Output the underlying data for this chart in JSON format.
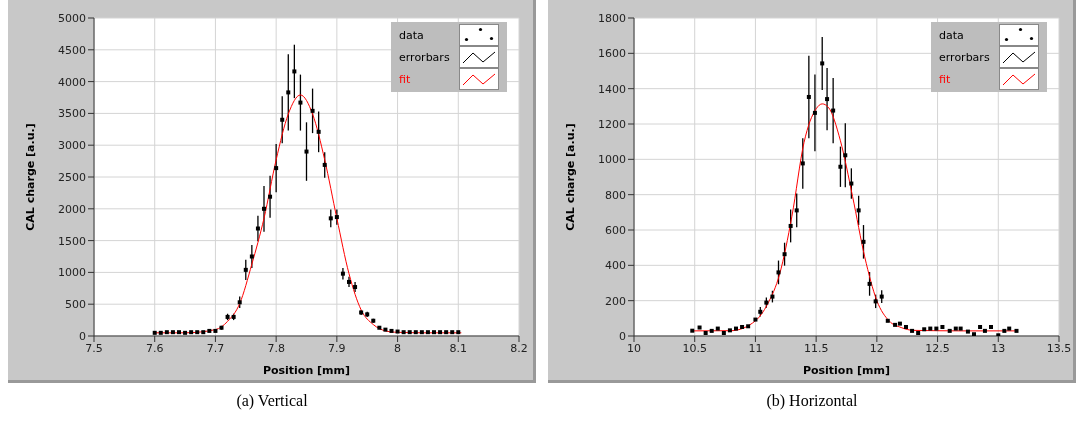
{
  "chart_data": [
    {
      "type": "scatter",
      "title": "(a)  Vertical",
      "xlabel": "Position [mm]",
      "ylabel": "CAL charge [a.u.]",
      "xlim": [
        7.5,
        8.2
      ],
      "xticks": [
        7.5,
        7.6,
        7.7,
        7.8,
        7.9,
        8,
        8.1,
        8.2
      ],
      "ylim": [
        0,
        5000
      ],
      "yticks": [
        0,
        500,
        1000,
        1500,
        2000,
        2500,
        3000,
        3500,
        4000,
        4500,
        5000
      ],
      "grid": true,
      "legend": "top right",
      "annotations": [
        "errorbars"
      ],
      "x": [
        7.6,
        7.61,
        7.62,
        7.63,
        7.64,
        7.65,
        7.66,
        7.67,
        7.68,
        7.69,
        7.7,
        7.71,
        7.72,
        7.73,
        7.74,
        7.75,
        7.76,
        7.77,
        7.78,
        7.79,
        7.8,
        7.81,
        7.82,
        7.83,
        7.84,
        7.85,
        7.86,
        7.87,
        7.88,
        7.89,
        7.9,
        7.91,
        7.92,
        7.93,
        7.94,
        7.95,
        7.96,
        7.97,
        7.98,
        7.99,
        8,
        8.01,
        8.02,
        8.03,
        8.04,
        8.05,
        8.06,
        8.07,
        8.08,
        8.09,
        8.1
      ],
      "series": [
        {
          "name": "data",
          "marker": "square",
          "color": "#000000",
          "values": [
            50,
            50,
            60,
            60,
            60,
            50,
            60,
            60,
            60,
            80,
            80,
            130,
            300,
            300,
            530,
            1040,
            1250,
            1690,
            2000,
            2190,
            2640,
            3400,
            3830,
            4160,
            3670,
            2900,
            3540,
            3210,
            2690,
            1850,
            1870,
            980,
            850,
            770,
            370,
            340,
            240,
            130,
            100,
            80,
            70,
            60,
            60,
            60,
            60,
            60,
            60,
            60,
            60,
            60,
            60
          ],
          "errors": [
            null,
            null,
            null,
            null,
            null,
            null,
            null,
            null,
            null,
            null,
            null,
            30,
            50,
            50,
            90,
            160,
            180,
            200,
            360,
            330,
            380,
            370,
            600,
            420,
            440,
            460,
            350,
            320,
            200,
            140,
            120,
            90,
            80,
            80,
            40,
            40,
            30,
            null,
            null,
            null,
            null,
            null,
            null,
            null,
            null,
            null,
            null,
            null,
            null,
            null,
            null
          ]
        },
        {
          "name": "fit",
          "type": "line",
          "marker": "none",
          "color": "#ff0000",
          "x": [
            7.6,
            7.65,
            7.7,
            7.72,
            7.74,
            7.76,
            7.78,
            7.8,
            7.82,
            7.84,
            7.86,
            7.88,
            7.9,
            7.92,
            7.94,
            7.96,
            7.98,
            7.995,
            8.045,
            8.105
          ],
          "values": [
            50,
            50,
            100,
            230,
            510,
            1130,
            1850,
            2770,
            3490,
            3790,
            3490,
            2770,
            1850,
            980,
            410,
            180,
            80,
            60,
            50,
            50
          ]
        }
      ]
    },
    {
      "type": "scatter",
      "title": "(b)  Horizontal",
      "xlabel": "Position [mm]",
      "ylabel": "CAL charge [a.u.]",
      "xlim": [
        10,
        13.5
      ],
      "xticks": [
        10,
        10.5,
        11,
        11.5,
        12,
        12.5,
        13,
        13.5
      ],
      "ylim": [
        0,
        1800
      ],
      "yticks": [
        0,
        200,
        400,
        600,
        800,
        1000,
        1200,
        1400,
        1600,
        1800
      ],
      "grid": true,
      "legend": "top right",
      "annotations": [
        "errorbars"
      ],
      "x": [
        10.48,
        10.54,
        10.59,
        10.64,
        10.69,
        10.74,
        10.79,
        10.84,
        10.89,
        10.94,
        11,
        11.04,
        11.09,
        11.14,
        11.19,
        11.24,
        11.29,
        11.34,
        11.39,
        11.44,
        11.49,
        11.55,
        11.59,
        11.64,
        11.7,
        11.74,
        11.79,
        11.85,
        11.89,
        11.94,
        11.99,
        12.04,
        12.09,
        12.15,
        12.19,
        12.24,
        12.29,
        12.34,
        12.39,
        12.44,
        12.49,
        12.54,
        12.6,
        12.65,
        12.69,
        12.75,
        12.8,
        12.85,
        12.89,
        12.94,
        13,
        13.05,
        13.09,
        13.15
      ],
      "series": [
        {
          "name": "data",
          "marker": "square",
          "color": "#000000",
          "values": [
            30,
            48,
            17,
            29,
            42,
            17,
            32,
            42,
            51,
            55,
            93,
            137,
            189,
            223,
            360,
            463,
            623,
            711,
            977,
            1353,
            1263,
            1543,
            1341,
            1276,
            958,
            1023,
            863,
            711,
            533,
            295,
            196,
            223,
            86,
            63,
            70,
            51,
            29,
            17,
            38,
            42,
            42,
            51,
            29,
            42,
            42,
            25,
            10,
            51,
            29,
            51,
            4,
            29,
            42,
            29
          ],
          "errors": [
            null,
            null,
            null,
            null,
            null,
            null,
            null,
            null,
            null,
            null,
            null,
            27,
            29,
            33,
            67,
            65,
            93,
            95,
            143,
            233,
            217,
            150,
            176,
            185,
            114,
            181,
            86,
            83,
            95,
            67,
            38,
            36,
            null,
            null,
            null,
            null,
            null,
            null,
            null,
            null,
            null,
            null,
            null,
            null,
            null,
            null,
            null,
            null,
            null,
            null,
            null,
            null,
            null,
            null
          ]
        },
        {
          "name": "fit",
          "type": "line",
          "marker": "none",
          "color": "#ff0000",
          "x": [
            10.48,
            10.8,
            11,
            11.1,
            11.2,
            11.3,
            11.4,
            11.5,
            11.55,
            11.6,
            11.7,
            11.8,
            11.9,
            12,
            12.1,
            12.2,
            12.3,
            12.7,
            13.15
          ],
          "values": [
            29,
            30,
            86,
            181,
            352,
            676,
            1095,
            1286,
            1314,
            1295,
            1105,
            790,
            448,
            200,
            86,
            48,
            32,
            29,
            29
          ]
        }
      ]
    }
  ]
}
